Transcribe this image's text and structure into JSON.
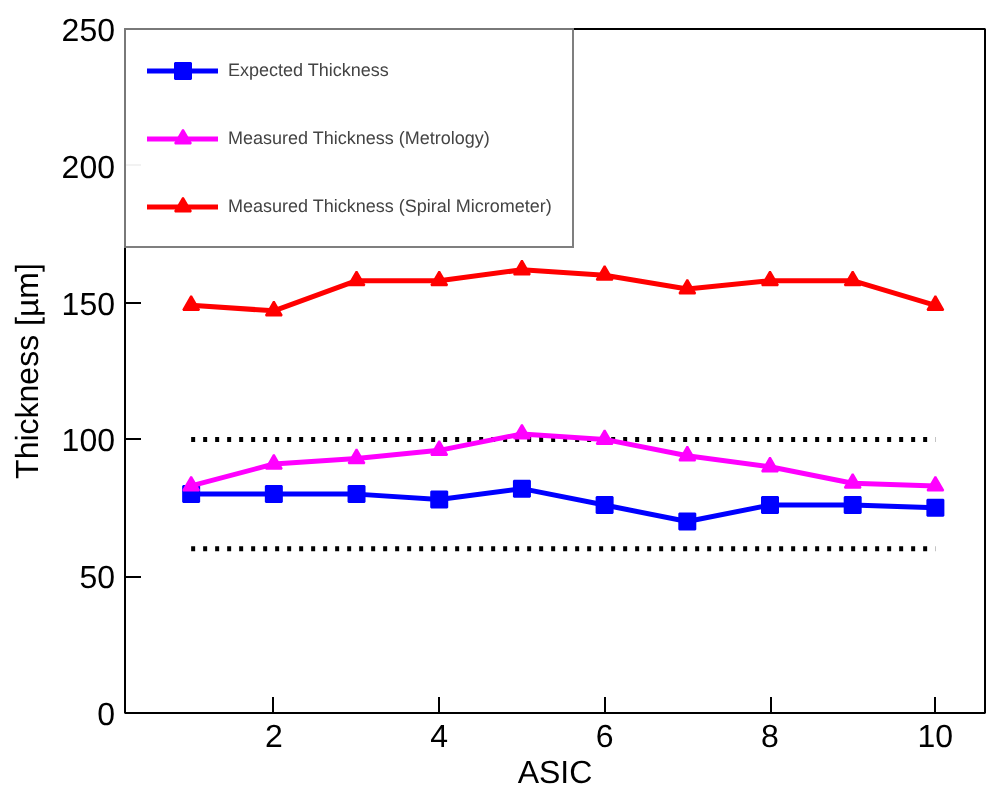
{
  "chart_data": {
    "type": "line",
    "xlabel": "ASIC",
    "ylabel": "Thickness [µm]",
    "x": [
      1,
      2,
      3,
      4,
      5,
      6,
      7,
      8,
      9,
      10
    ],
    "xlim": [
      0.2,
      10.6
    ],
    "xticks": [
      2,
      4,
      6,
      8,
      10
    ],
    "ylim": [
      0,
      250
    ],
    "yticks": [
      0,
      50,
      100,
      150,
      200,
      250
    ],
    "grid": false,
    "legend": "top left",
    "line_style": "solid",
    "series": [
      {
        "name": "Expected Thickness",
        "color": "#0000ff",
        "marker": "square",
        "values": [
          80,
          80,
          80,
          78,
          82,
          76,
          70,
          76,
          76,
          75
        ]
      },
      {
        "name": "Measured Thickness (Metrology)",
        "color": "#ff00ff",
        "marker": "triangle",
        "values": [
          83,
          91,
          93,
          96,
          102,
          100,
          94,
          90,
          84,
          83
        ]
      },
      {
        "name": "Measured Thickness (Spiral Micrometer)",
        "color": "#ff0000",
        "marker": "triangle",
        "values": [
          149,
          147,
          158,
          158,
          162,
          160,
          155,
          158,
          158,
          149
        ]
      }
    ],
    "ref_lines": [
      {
        "axis": "y",
        "value": 100,
        "color": "#000000",
        "line_style": "dotted"
      },
      {
        "axis": "y",
        "value": 60,
        "color": "#000000",
        "line_style": "dotted"
      }
    ]
  }
}
